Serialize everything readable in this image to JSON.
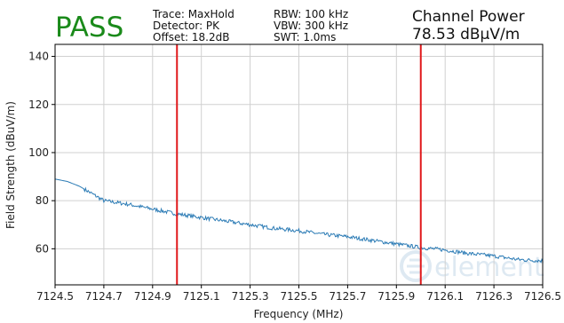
{
  "header": {
    "verdict": "PASS",
    "trace": "Trace: MaxHold",
    "detector": "Detector: PK",
    "offset": "Offset: 18.2dB",
    "rbw": "RBW: 100 kHz",
    "vbw": "VBW: 300 kHz",
    "swt": "SWT: 1.0ms",
    "channel_power_title": "Channel Power",
    "channel_power_value": "78.53 dBµV/m"
  },
  "watermark": {
    "text": "element"
  },
  "colors": {
    "verdict": "#1a8a1a",
    "trace": "#2b7bb5",
    "marker": "#e0191b",
    "grid": "#d0d0d0",
    "watermark": "#dbe7f1"
  },
  "chart_data": {
    "type": "line",
    "xlabel": "Frequency (MHz)",
    "ylabel": "Field Strength (dBuV/m)",
    "xlim": [
      7124.5,
      7126.5
    ],
    "ylim": [
      45,
      145
    ],
    "xticks": [
      7124.5,
      7124.7,
      7124.9,
      7125.1,
      7125.3,
      7125.5,
      7125.7,
      7125.9,
      7126.1,
      7126.3,
      7126.5
    ],
    "xtick_labels": [
      "7124.5",
      "7124.7",
      "7124.9",
      "7125.1",
      "7125.3",
      "7125.5",
      "7125.7",
      "7125.9",
      "7126.1",
      "7126.3",
      "7126.5"
    ],
    "yticks": [
      60,
      80,
      100,
      120,
      140
    ],
    "ytick_labels": [
      "60",
      "80",
      "100",
      "120",
      "140"
    ],
    "grid": true,
    "markers_x": [
      7125.0,
      7126.0
    ],
    "series": [
      {
        "x": [
          7124.5,
          7124.55,
          7124.6,
          7124.65,
          7124.7,
          7124.8,
          7124.9,
          7125.0,
          7125.1,
          7125.2,
          7125.3,
          7125.4,
          7125.5,
          7125.6,
          7125.7,
          7125.8,
          7125.9,
          7126.0,
          7126.1,
          7126.2,
          7126.3,
          7126.4,
          7126.5
        ],
        "values": [
          89,
          88,
          86,
          83,
          80,
          78.5,
          76.5,
          74.5,
          73,
          71.5,
          70,
          68.5,
          67.5,
          66,
          65,
          63.5,
          62,
          60.5,
          59.5,
          58,
          57,
          55.5,
          55
        ]
      }
    ]
  }
}
